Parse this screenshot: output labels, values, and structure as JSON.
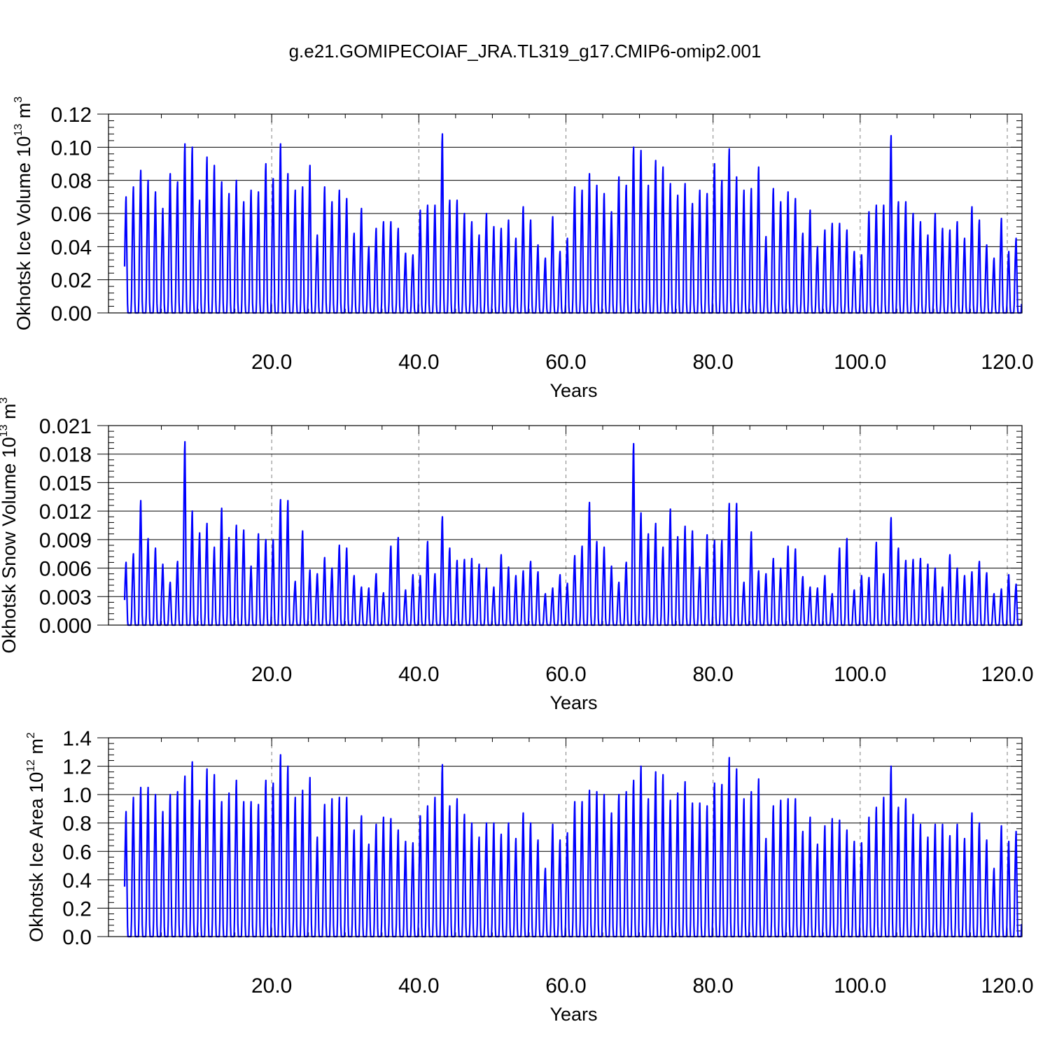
{
  "title": "g.e21.GOMIPECOIAF_JRA.TL319_g17.CMIP6-omip2.001",
  "colors": {
    "series": "#0000ff",
    "axis": "#000000",
    "grid": "#808080"
  },
  "chart_data": [
    {
      "type": "line",
      "ylabel": "Okhotsk Ice Volume 10",
      "ylabel_exp": "13",
      "ylabel_unit": " m",
      "ylabel_unit_exp": "3",
      "xlabel": "Years",
      "xlim": [
        0,
        122
      ],
      "ylim": [
        0,
        0.12
      ],
      "xticks": [
        20,
        40,
        60,
        80,
        100,
        120
      ],
      "xtick_labels": [
        "20.0",
        "40.0",
        "60.0",
        "80.0",
        "100.0",
        "120.0"
      ],
      "yticks": [
        0,
        0.02,
        0.04,
        0.06,
        0.08,
        0.1,
        0.12
      ],
      "ytick_labels": [
        "0.00",
        "0.02",
        "0.04",
        "0.06",
        "0.08",
        "0.10",
        "0.12"
      ],
      "grid": "vertical dashed at major x ticks",
      "series": [
        {
          "annual_max": [
            0.07,
            0.076,
            0.086,
            0.08,
            0.073,
            0.063,
            0.084,
            0.079,
            0.102,
            0.1,
            0.068,
            0.094,
            0.089,
            0.079,
            0.072,
            0.08,
            0.067,
            0.074,
            0.073,
            0.09,
            0.081,
            0.102,
            0.084,
            0.074,
            0.076,
            0.089,
            0.047,
            0.076,
            0.067,
            0.074,
            0.069,
            0.048,
            0.063,
            0.04,
            0.051,
            0.055,
            0.055,
            0.051,
            0.036,
            0.035,
            0.062,
            0.065,
            0.065,
            0.108,
            0.068,
            0.068,
            0.06,
            0.055,
            0.047,
            0.06,
            0.052,
            0.051,
            0.056,
            0.045,
            0.064,
            0.056,
            0.041,
            0.033,
            0.058,
            0.037,
            0.045,
            0.076,
            0.074,
            0.084,
            0.077,
            0.072,
            0.061,
            0.082,
            0.077,
            0.1,
            0.098,
            0.077,
            0.092,
            0.088,
            0.078,
            0.071,
            0.078,
            0.066,
            0.074,
            0.072,
            0.09,
            0.08,
            0.099,
            0.082,
            0.074,
            0.075,
            0.088,
            0.046,
            0.075,
            0.067,
            0.073,
            0.069,
            0.048,
            0.062,
            0.04,
            0.05,
            0.054,
            0.054,
            0.05,
            0.037,
            0.035,
            0.061,
            0.065,
            0.065,
            0.107,
            0.067,
            0.067,
            0.06,
            0.055,
            0.047,
            0.06,
            0.051,
            0.05,
            0.055,
            0.045,
            0.064,
            0.056,
            0.041,
            0.033,
            0.057,
            0.037,
            0.045
          ]
        }
      ]
    },
    {
      "type": "line",
      "ylabel": "Okhotsk Snow Volume 10",
      "ylabel_exp": "13",
      "ylabel_unit": " m",
      "ylabel_unit_exp": "3",
      "xlabel": "Years",
      "xlim": [
        0,
        122
      ],
      "ylim": [
        0,
        0.021
      ],
      "xticks": [
        20,
        40,
        60,
        80,
        100,
        120
      ],
      "xtick_labels": [
        "20.0",
        "40.0",
        "60.0",
        "80.0",
        "100.0",
        "120.0"
      ],
      "yticks": [
        0,
        0.003,
        0.006,
        0.009,
        0.012,
        0.015,
        0.018,
        0.021
      ],
      "ytick_labels": [
        "0.000",
        "0.003",
        "0.006",
        "0.009",
        "0.012",
        "0.015",
        "0.018",
        "0.021"
      ],
      "grid": "vertical dashed at major x ticks",
      "series": [
        {
          "annual_max": [
            0.0066,
            0.0075,
            0.0131,
            0.0091,
            0.0081,
            0.0064,
            0.0045,
            0.0067,
            0.0193,
            0.012,
            0.0097,
            0.0107,
            0.0082,
            0.0123,
            0.0092,
            0.0105,
            0.01,
            0.0062,
            0.0096,
            0.009,
            0.009,
            0.0132,
            0.0131,
            0.0046,
            0.0099,
            0.0058,
            0.0054,
            0.0071,
            0.006,
            0.0084,
            0.0081,
            0.0052,
            0.004,
            0.0039,
            0.0054,
            0.0034,
            0.0083,
            0.0092,
            0.0037,
            0.0053,
            0.0052,
            0.0088,
            0.0054,
            0.0114,
            0.0081,
            0.0068,
            0.0069,
            0.007,
            0.0064,
            0.006,
            0.004,
            0.0074,
            0.0061,
            0.0052,
            0.0057,
            0.0067,
            0.0056,
            0.0033,
            0.0039,
            0.0053,
            0.0044,
            0.0073,
            0.0083,
            0.0129,
            0.0088,
            0.0082,
            0.0062,
            0.0045,
            0.0066,
            0.0191,
            0.0118,
            0.0096,
            0.0107,
            0.0082,
            0.0122,
            0.0093,
            0.0104,
            0.0099,
            0.0061,
            0.0095,
            0.0089,
            0.0089,
            0.0128,
            0.0128,
            0.0045,
            0.0098,
            0.0057,
            0.0054,
            0.007,
            0.006,
            0.0083,
            0.008,
            0.0051,
            0.004,
            0.0039,
            0.0052,
            0.0033,
            0.0081,
            0.0091,
            0.0037,
            0.0052,
            0.005,
            0.0087,
            0.0054,
            0.0113,
            0.0081,
            0.0068,
            0.0069,
            0.007,
            0.0064,
            0.006,
            0.004,
            0.0074,
            0.006,
            0.0052,
            0.0056,
            0.0067,
            0.0055,
            0.0033,
            0.0038,
            0.0053,
            0.0043
          ]
        }
      ]
    },
    {
      "type": "line",
      "ylabel": "Okhotsk Ice Area 10",
      "ylabel_exp": "12",
      "ylabel_unit": " m",
      "ylabel_unit_exp": "2",
      "xlabel": "Years",
      "xlim": [
        0,
        122
      ],
      "ylim": [
        0,
        1.4
      ],
      "xticks": [
        20,
        40,
        60,
        80,
        100,
        120
      ],
      "xtick_labels": [
        "20.0",
        "40.0",
        "60.0",
        "80.0",
        "100.0",
        "120.0"
      ],
      "yticks": [
        0,
        0.2,
        0.4,
        0.6,
        0.8,
        1.0,
        1.2,
        1.4
      ],
      "ytick_labels": [
        "0.0",
        "0.2",
        "0.4",
        "0.6",
        "0.8",
        "1.0",
        "1.2",
        "1.4"
      ],
      "grid": "vertical dashed at major x ticks",
      "series": [
        {
          "annual_max": [
            0.88,
            0.98,
            1.05,
            1.05,
            1.0,
            0.88,
            1.0,
            1.02,
            1.13,
            1.23,
            0.96,
            1.18,
            1.14,
            0.95,
            1.01,
            1.1,
            0.95,
            0.95,
            0.93,
            1.1,
            1.08,
            1.28,
            1.2,
            0.98,
            1.03,
            1.12,
            0.7,
            0.93,
            0.97,
            0.98,
            0.98,
            0.75,
            0.85,
            0.65,
            0.79,
            0.84,
            0.83,
            0.75,
            0.67,
            0.66,
            0.85,
            0.92,
            0.98,
            1.21,
            0.92,
            0.97,
            0.86,
            0.8,
            0.7,
            0.8,
            0.8,
            0.72,
            0.8,
            0.69,
            0.87,
            0.8,
            0.68,
            0.48,
            0.79,
            0.68,
            0.73,
            0.95,
            0.95,
            1.03,
            1.02,
            1.0,
            0.87,
            1.0,
            1.02,
            1.1,
            1.2,
            0.97,
            1.16,
            1.14,
            0.96,
            1.01,
            1.09,
            0.94,
            0.94,
            0.92,
            1.08,
            1.07,
            1.26,
            1.18,
            0.97,
            1.02,
            1.11,
            0.69,
            0.92,
            0.96,
            0.97,
            0.97,
            0.74,
            0.84,
            0.65,
            0.78,
            0.83,
            0.82,
            0.75,
            0.67,
            0.66,
            0.84,
            0.91,
            0.98,
            1.2,
            0.91,
            0.97,
            0.86,
            0.79,
            0.7,
            0.79,
            0.79,
            0.71,
            0.79,
            0.69,
            0.87,
            0.8,
            0.68,
            0.48,
            0.78,
            0.67,
            0.74
          ]
        }
      ]
    }
  ]
}
